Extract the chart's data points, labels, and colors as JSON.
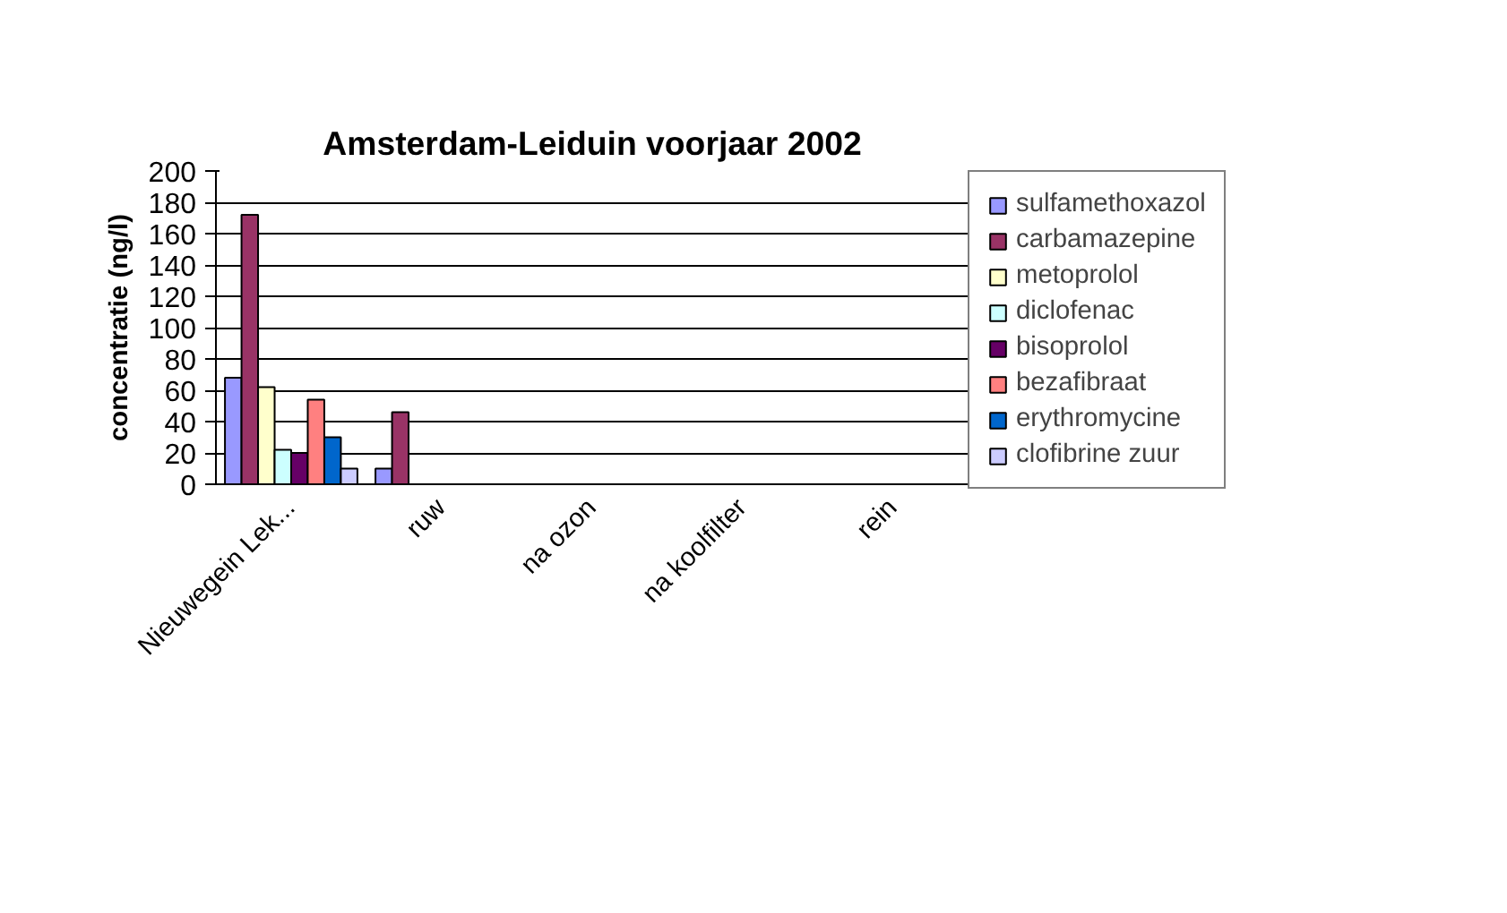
{
  "chart_data": {
    "type": "bar",
    "title": "Amsterdam-Leiduin voorjaar 2002",
    "ylabel": "concentratie (ng/l)",
    "categories": [
      "Nieuwegein Lek...",
      "ruw",
      "na ozon",
      "na koolfilter",
      "rein"
    ],
    "series": [
      {
        "name": "sulfamethoxazol",
        "color": "#9999ff",
        "values": [
          68,
          10,
          null,
          null,
          null
        ]
      },
      {
        "name": "carbamazepine",
        "color": "#993366",
        "values": [
          172,
          46,
          null,
          null,
          null
        ]
      },
      {
        "name": "metoprolol",
        "color": "#ffffcc",
        "values": [
          62,
          null,
          null,
          null,
          null
        ]
      },
      {
        "name": "diclofenac",
        "color": "#ccffff",
        "values": [
          22,
          null,
          null,
          null,
          null
        ]
      },
      {
        "name": "bisoprolol",
        "color": "#660066",
        "values": [
          20,
          null,
          null,
          null,
          null
        ]
      },
      {
        "name": "bezafibraat",
        "color": "#ff8080",
        "values": [
          54,
          null,
          null,
          null,
          null
        ]
      },
      {
        "name": "erythromycine",
        "color": "#0066cc",
        "values": [
          30,
          null,
          null,
          null,
          null
        ]
      },
      {
        "name": "clofibrine zuur",
        "color": "#ccccff",
        "values": [
          10,
          null,
          null,
          null,
          null
        ]
      }
    ],
    "ylim": [
      0,
      200
    ],
    "yticks": [
      0,
      20,
      40,
      60,
      80,
      100,
      120,
      140,
      160,
      180,
      200
    ],
    "grid": "y",
    "legend": "right"
  }
}
